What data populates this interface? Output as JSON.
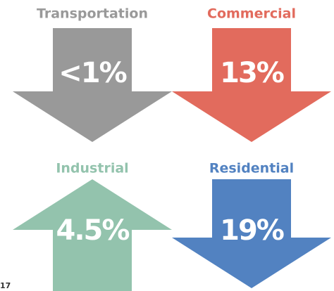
{
  "panels": [
    {
      "label": "Transportation",
      "value": "<1%",
      "color": "#999999",
      "direction": "down"
    },
    {
      "label": "Commercial",
      "value": "13%",
      "color": "#e26b5d",
      "direction": "down"
    },
    {
      "label": "Industrial",
      "value": "4.5%",
      "color": "#93c3ad",
      "direction": "up"
    },
    {
      "label": "Residential",
      "value": "19%",
      "color": "#5282c1",
      "direction": "down"
    }
  ],
  "footer": "17"
}
